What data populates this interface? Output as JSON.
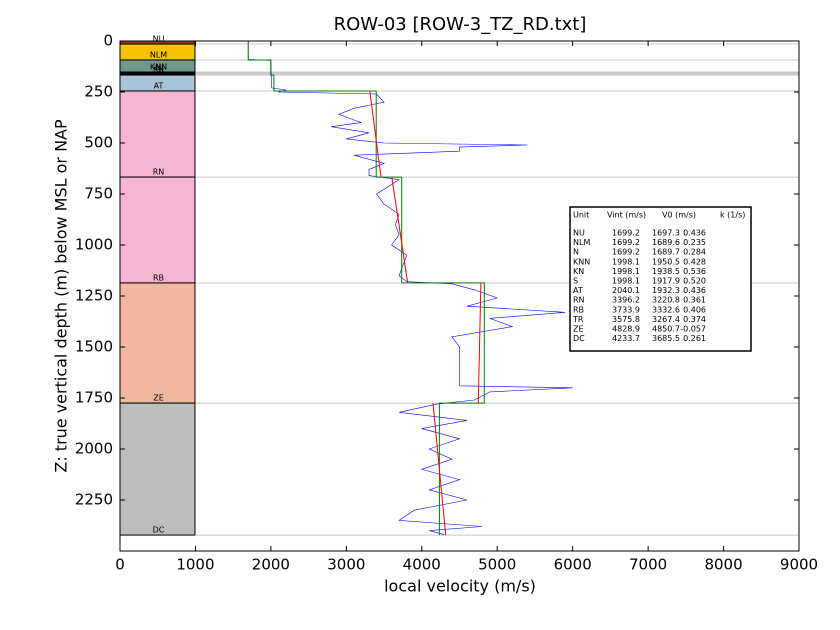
{
  "chart_data": {
    "type": "line",
    "title": "ROW-03 [ROW-3_TZ_RD.txt]",
    "xlabel": "local velocity (m/s)",
    "ylabel": "Z: true vertical depth (m) below MSL or NAP",
    "xlim": [
      0,
      9000
    ],
    "xticks": [
      0,
      1000,
      2000,
      3000,
      4000,
      5000,
      6000,
      7000,
      8000,
      9000
    ],
    "ylim": [
      2500,
      0
    ],
    "yticks": [
      0,
      250,
      500,
      750,
      1000,
      1250,
      1500,
      1750,
      2000,
      2250
    ],
    "layers": [
      {
        "label": "NU",
        "top": 0,
        "bottom": 15,
        "color": "#9b3a22"
      },
      {
        "label": "NLM",
        "top": 15,
        "bottom": 93,
        "color": "#f5c400"
      },
      {
        "label": "KNN",
        "top": 93,
        "bottom": 152,
        "color": "#6f9a8a"
      },
      {
        "label": "N",
        "top": 152,
        "bottom": 157,
        "color": "#8fc3de"
      },
      {
        "label": "KN",
        "top": 157,
        "bottom": 162,
        "color": "#7fb3ce"
      },
      {
        "label": "S",
        "top": 162,
        "bottom": 167,
        "color": "#9fcbe0"
      },
      {
        "label": "AT",
        "top": 167,
        "bottom": 245,
        "color": "#a9c4d8"
      },
      {
        "label": "RN",
        "top": 245,
        "bottom": 667,
        "color": "#f4b6d2"
      },
      {
        "label": "RB",
        "top": 667,
        "bottom": 1186,
        "color": "#f4b6d2"
      },
      {
        "label": "ZE",
        "top": 1186,
        "bottom": 1775,
        "color": "#f2b8a0"
      },
      {
        "label": "DC",
        "top": 1775,
        "bottom": 2422,
        "color": "#bdbdbd"
      }
    ],
    "series": [
      {
        "color": "#0000ff",
        "x": [
          1700,
          1700,
          2000,
          2010,
          2200,
          2100,
          3400,
          3500,
          3100,
          2900,
          3200,
          2800,
          3300,
          3000,
          3500,
          5400,
          4500,
          4500,
          3100,
          3500,
          3300,
          3300,
          3700,
          3400,
          3500,
          3700,
          3650,
          3700,
          3600,
          3800,
          3750,
          3700,
          3800,
          4400,
          4700,
          5000,
          4600,
          5900,
          4900,
          5200,
          4400,
          4500,
          4500,
          4500,
          6000,
          4900,
          4700,
          4200,
          3700,
          4600,
          4000,
          4500,
          4100,
          4400,
          4000,
          4500,
          4100,
          4600,
          3900,
          3700,
          4800,
          4100,
          4300
        ],
        "y": [
          0,
          90,
          95,
          230,
          240,
          250,
          260,
          300,
          330,
          360,
          400,
          420,
          450,
          480,
          500,
          510,
          520,
          540,
          560,
          600,
          630,
          660,
          680,
          750,
          800,
          850,
          900,
          950,
          1000,
          1050,
          1100,
          1150,
          1180,
          1190,
          1220,
          1260,
          1300,
          1330,
          1360,
          1400,
          1450,
          1500,
          1600,
          1690,
          1700,
          1720,
          1760,
          1780,
          1820,
          1860,
          1900,
          1950,
          2000,
          2050,
          2100,
          2150,
          2200,
          2250,
          2300,
          2350,
          2380,
          2400,
          2420
        ]
      },
      {
        "color": "#008000",
        "x": [
          1699.2,
          1699.2,
          1998.1,
          1998.1,
          2040.1,
          2040.1,
          3396.2,
          3396.2,
          3733.9,
          3733.9,
          4828.9,
          4828.9,
          4233.7,
          4233.7
        ],
        "y": [
          0,
          93,
          93,
          167,
          167,
          245,
          245,
          667,
          667,
          1186,
          1186,
          1775,
          1775,
          2422
        ]
      },
      {
        "color": "#ff0000",
        "x": [
          3311,
          3459,
          null,
          3603,
          3814,
          null,
          4783,
          4749,
          null,
          4149,
          4317
        ],
        "y": [
          245,
          667,
          null,
          667,
          1186,
          null,
          1186,
          1775,
          null,
          1775,
          2422
        ]
      }
    ],
    "table": {
      "header": [
        "Unit",
        "Vint (m/s)",
        "V0 (m/s)",
        "k (1/s)"
      ],
      "rows": [
        [
          "NU",
          1699.2,
          1697.3,
          0.436
        ],
        [
          "NLM",
          1699.2,
          1689.6,
          0.235
        ],
        [
          "N",
          1699.2,
          1689.7,
          0.284
        ],
        [
          "KNN",
          1998.1,
          1950.5,
          0.428
        ],
        [
          "KN",
          1998.1,
          1938.5,
          0.536
        ],
        [
          "S",
          1998.1,
          1917.9,
          "0.520"
        ],
        [
          "AT",
          2040.1,
          1932.3,
          0.436
        ],
        [
          "RN",
          3396.2,
          3220.8,
          0.361
        ],
        [
          "RB",
          3733.9,
          3332.6,
          0.406
        ],
        [
          "TR",
          3575.8,
          3267.4,
          0.374
        ],
        [
          "ZE",
          4828.9,
          4850.7,
          -0.057
        ],
        [
          "DC",
          4233.7,
          3685.5,
          0.261
        ]
      ]
    }
  }
}
